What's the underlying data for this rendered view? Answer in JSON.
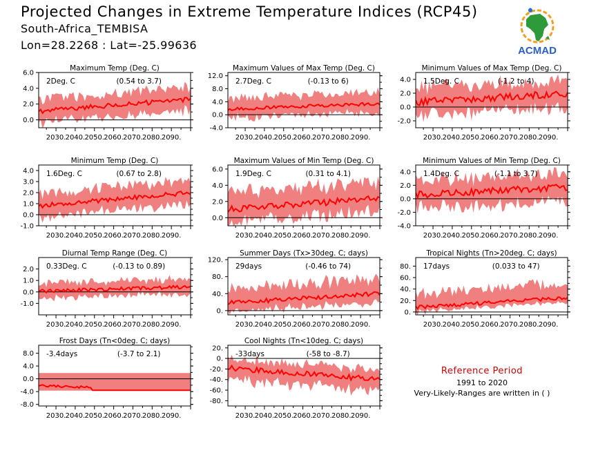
{
  "header": {
    "title": "Projected Changes in Extreme Temperature Indices (RCP45)",
    "location": "South-Africa_TEMBISA",
    "coordinates": "Lon=28.2268 : Lat=-25.99636"
  },
  "logo": {
    "text": "ACMAD",
    "icon": "africa-map-logo-icon"
  },
  "reference": {
    "title": "Reference Period",
    "years": "1991 to 2020",
    "note": "Very-Likely-Ranges are written in ( )"
  },
  "colors": {
    "band": "#f08080",
    "line": "#ff0000",
    "reference_title": "#cc0000"
  },
  "chart_data": [
    {
      "type": "area",
      "title": "Maximum Temp (Deg. C)",
      "change": "2Deg. C",
      "range": "(0.54 to 3.7)",
      "x_range": [
        2021,
        2100
      ],
      "x_ticks": [
        "2030.",
        "2040.",
        "2050.",
        "2060.",
        "2070.",
        "2080.",
        "2090."
      ],
      "ylim": [
        -1.0,
        6.0
      ],
      "y_ticks": [
        0.0,
        2.0,
        4.0,
        6.0
      ],
      "y_tick_labels": [
        "0.0",
        "2.0",
        "4.0",
        "6.0"
      ],
      "start": 1.1,
      "end": 2.6,
      "wiggle": 0.3,
      "band_low": 1.4,
      "band_high": 1.5
    },
    {
      "type": "area",
      "title": "Maximum Values of Max Temp (Deg. C)",
      "change": "2.7Deg. C",
      "range": "(-0.13 to 6)",
      "x_range": [
        2021,
        2100
      ],
      "x_ticks": [
        "2030.",
        "2040.",
        "2050.",
        "2060.",
        "2070.",
        "2080.",
        "2090."
      ],
      "ylim": [
        -4.0,
        13.0
      ],
      "y_ticks": [
        -4.0,
        0.0,
        4.0,
        8.0,
        12.0
      ],
      "y_tick_labels": [
        "-4.0",
        "0.0",
        "4.0",
        "8.0",
        "12.0"
      ],
      "start": 1.8,
      "end": 3.4,
      "wiggle": 0.5,
      "band_low": 2.6,
      "band_high": 3.5
    },
    {
      "type": "area",
      "title": "Minimum Values of Max Temp (Deg. C)",
      "change": "1.5Deg. C",
      "range": "(-1.2 to 4)",
      "x_range": [
        2021,
        2100
      ],
      "x_ticks": [
        "2030.",
        "2040.",
        "2050.",
        "2060.",
        "2070.",
        "2080.",
        "2090."
      ],
      "ylim": [
        -3.0,
        5.0
      ],
      "y_ticks": [
        -2.0,
        0.0,
        2.0,
        4.0
      ],
      "y_tick_labels": [
        "-2.0",
        "0.0",
        "2.0",
        "4.0"
      ],
      "start": 0.7,
      "end": 2.0,
      "wiggle": 0.5,
      "band_low": 1.9,
      "band_high": 2.0
    },
    {
      "type": "area",
      "title": "Minimum Temp (Deg. C)",
      "change": "1.6Deg. C",
      "range": "(0.67 to 2.8)",
      "x_range": [
        2021,
        2100
      ],
      "x_ticks": [
        "2030.",
        "2040.",
        "2050.",
        "2060.",
        "2070.",
        "2080.",
        "2090."
      ],
      "ylim": [
        -1.0,
        4.5
      ],
      "y_ticks": [
        -1.0,
        0.0,
        1.0,
        2.0,
        3.0,
        4.0
      ],
      "y_tick_labels": [
        "-1.0",
        "0.0",
        "1.0",
        "2.0",
        "3.0",
        "4.0"
      ],
      "start": 0.8,
      "end": 2.0,
      "wiggle": 0.2,
      "band_low": 1.0,
      "band_high": 1.1
    },
    {
      "type": "area",
      "title": "Maximum Values of Min Temp (Deg. C)",
      "change": "1.9Deg. C",
      "range": "(0.31 to 4.1)",
      "x_range": [
        2021,
        2100
      ],
      "x_ticks": [
        "2030.",
        "2040.",
        "2050.",
        "2060.",
        "2070.",
        "2080.",
        "2090."
      ],
      "ylim": [
        -1.0,
        6.5
      ],
      "y_ticks": [
        0.0,
        2.0,
        4.0,
        6.0
      ],
      "y_tick_labels": [
        "0.0",
        "2.0",
        "4.0",
        "6.0"
      ],
      "start": 1.0,
      "end": 2.4,
      "wiggle": 0.4,
      "band_low": 1.6,
      "band_high": 2.0
    },
    {
      "type": "area",
      "title": "Minimum Values of Min Temp (Deg. C)",
      "change": "1.4Deg. C",
      "range": "(-1.1 to 3.7)",
      "x_range": [
        2021,
        2100
      ],
      "x_ticks": [
        "2030.",
        "2040.",
        "2050.",
        "2060.",
        "2070.",
        "2080.",
        "2090."
      ],
      "ylim": [
        -4.0,
        5.0
      ],
      "y_ticks": [
        -4.0,
        -2.0,
        0.0,
        2.0,
        4.0
      ],
      "y_tick_labels": [
        "-4.0",
        "-2.0",
        "0.0",
        "2.0",
        "4.0"
      ],
      "start": 0.6,
      "end": 1.7,
      "wiggle": 0.5,
      "band_low": 2.0,
      "band_high": 2.0
    },
    {
      "type": "area",
      "title": "Diurnal Temp Range (Deg. C)",
      "change": "0.33Deg. C",
      "range": "(-0.13 to 0.89)",
      "x_range": [
        2021,
        2100
      ],
      "x_ticks": [
        "2030.",
        "2040.",
        "2050.",
        "2060.",
        "2070.",
        "2080.",
        "2090."
      ],
      "ylim": [
        -2.0,
        3.0
      ],
      "y_ticks": [
        -1.0,
        0.0,
        1.0,
        2.0
      ],
      "y_tick_labels": [
        "-1.0",
        "0.0",
        "1.0",
        "2.0"
      ],
      "start": 0.05,
      "end": 0.45,
      "wiggle": 0.15,
      "band_low": 0.6,
      "band_high": 0.7
    },
    {
      "type": "area",
      "title": "Summer Days (Tx>30deg. C; days)",
      "change": "29days",
      "range": "(-0.46 to 74)",
      "x_range": [
        2021,
        2100
      ],
      "x_ticks": [
        "2030.",
        "2040.",
        "2050.",
        "2060.",
        "2070.",
        "2080.",
        "2090."
      ],
      "ylim": [
        -10,
        125
      ],
      "y_ticks": [
        0,
        40,
        80,
        120
      ],
      "y_tick_labels": [
        "0.",
        "40.",
        "80.",
        "120."
      ],
      "start": 18,
      "end": 40,
      "wiggle": 5,
      "band_low": 20,
      "band_high": 35
    },
    {
      "type": "area",
      "title": "Tropical Nights (Tn>20deg. C; days)",
      "change": "17days",
      "range": "(0.033 to 47)",
      "x_range": [
        2021,
        2100
      ],
      "x_ticks": [
        "2030.",
        "2040.",
        "2050.",
        "2060.",
        "2070.",
        "2080.",
        "2090."
      ],
      "ylim": [
        -5,
        95
      ],
      "y_ticks": [
        0,
        20,
        40,
        60,
        80
      ],
      "y_tick_labels": [
        "0.",
        "20.",
        "40.",
        "60.",
        "80."
      ],
      "start": 8,
      "end": 25,
      "wiggle": 3,
      "band_low": 8,
      "band_high": 25
    },
    {
      "type": "area",
      "title": "Frost Days (Tn<0deg. C; days)",
      "change": "-3.4days",
      "range": "(-3.7 to 2.1)",
      "x_range": [
        2021,
        2100
      ],
      "x_ticks": [
        "2030.",
        "2040.",
        "2050.",
        "2060.",
        "2070.",
        "2080.",
        "2090."
      ],
      "ylim": [
        -8.5,
        10.5
      ],
      "y_ticks": [
        -8.0,
        -4.0,
        0.0,
        4.0,
        8.0
      ],
      "y_tick_labels": [
        "-8.0",
        "-4.0",
        "0.0",
        "4.0",
        "8.0"
      ],
      "start": -2.2,
      "end": -3.6,
      "wiggle": 0.4,
      "band_low": 0.0,
      "band_high": 5.5,
      "flat": true
    },
    {
      "type": "area",
      "title": "Cool Nights (Tn<10deg. C; days)",
      "change": "-33days",
      "range": "(-58 to -8.7)",
      "x_range": [
        2021,
        2100
      ],
      "x_ticks": [
        "2030.",
        "2040.",
        "2050.",
        "2060.",
        "2070.",
        "2080.",
        "2090."
      ],
      "ylim": [
        -90,
        25
      ],
      "y_ticks": [
        -80,
        -60,
        -40,
        -20,
        0,
        20
      ],
      "y_tick_labels": [
        "-80.",
        "-60.",
        "-40.",
        "-20.",
        "0.",
        "20."
      ],
      "start": -18,
      "end": -40,
      "wiggle": 5,
      "band_low": 22,
      "band_high": 18
    }
  ]
}
